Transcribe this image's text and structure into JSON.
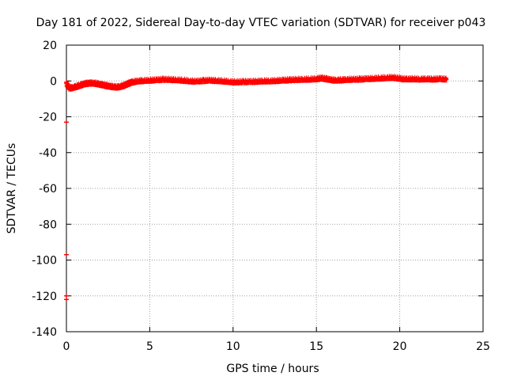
{
  "chart_data": {
    "type": "scatter",
    "title": "Day 181 of 2022, Sidereal Day-to-day VTEC variation (SDTVAR) for receiver p043",
    "xlabel": "GPS time / hours",
    "ylabel": "SDTVAR / TECUs",
    "xlim": [
      0,
      25
    ],
    "ylim": [
      -140,
      20
    ],
    "xticks": [
      0,
      5,
      10,
      15,
      20,
      25
    ],
    "yticks": [
      20,
      0,
      -20,
      -40,
      -60,
      -80,
      -100,
      -120,
      -140
    ],
    "grid": true,
    "series": [
      {
        "name": "SDTVAR",
        "color": "#ff0000",
        "marker": "plus",
        "points": [
          [
            0.2,
            -4.0
          ],
          [
            0.4,
            -3.6
          ],
          [
            0.6,
            -3.0
          ],
          [
            0.8,
            -2.4
          ],
          [
            1.0,
            -1.8
          ],
          [
            1.2,
            -1.4
          ],
          [
            1.4,
            -1.2
          ],
          [
            1.6,
            -1.2
          ],
          [
            1.8,
            -1.4
          ],
          [
            2.0,
            -1.8
          ],
          [
            2.2,
            -2.2
          ],
          [
            2.4,
            -2.6
          ],
          [
            2.6,
            -3.0
          ],
          [
            2.8,
            -3.2
          ],
          [
            3.0,
            -3.4
          ],
          [
            3.2,
            -3.2
          ],
          [
            3.4,
            -2.6
          ],
          [
            3.6,
            -1.8
          ],
          [
            3.8,
            -1.0
          ],
          [
            4.0,
            -0.5
          ],
          [
            4.3,
            0.0
          ],
          [
            4.6,
            0.2
          ],
          [
            5.0,
            0.4
          ],
          [
            5.4,
            0.6
          ],
          [
            5.8,
            0.9
          ],
          [
            6.2,
            0.8
          ],
          [
            6.6,
            0.6
          ],
          [
            7.0,
            0.4
          ],
          [
            7.4,
            0.0
          ],
          [
            7.8,
            -0.2
          ],
          [
            8.2,
            0.2
          ],
          [
            8.6,
            0.4
          ],
          [
            9.0,
            0.2
          ],
          [
            9.4,
            0.0
          ],
          [
            9.8,
            -0.4
          ],
          [
            10.2,
            -0.6
          ],
          [
            10.6,
            -0.4
          ],
          [
            11.0,
            -0.4
          ],
          [
            11.4,
            -0.2
          ],
          [
            11.8,
            0.0
          ],
          [
            12.2,
            0.0
          ],
          [
            12.6,
            0.2
          ],
          [
            13.0,
            0.4
          ],
          [
            13.4,
            0.6
          ],
          [
            13.8,
            0.8
          ],
          [
            14.2,
            0.9
          ],
          [
            14.6,
            1.0
          ],
          [
            15.0,
            1.2
          ],
          [
            15.3,
            1.6
          ],
          [
            15.6,
            1.2
          ],
          [
            15.9,
            0.6
          ],
          [
            16.2,
            0.4
          ],
          [
            16.5,
            0.6
          ],
          [
            16.8,
            0.8
          ],
          [
            17.2,
            0.9
          ],
          [
            17.6,
            1.0
          ],
          [
            18.0,
            1.2
          ],
          [
            18.4,
            1.4
          ],
          [
            18.8,
            1.6
          ],
          [
            19.2,
            1.8
          ],
          [
            19.6,
            2.0
          ],
          [
            20.0,
            1.4
          ],
          [
            20.4,
            1.0
          ],
          [
            20.8,
            1.2
          ],
          [
            21.2,
            1.0
          ],
          [
            21.6,
            1.2
          ],
          [
            22.0,
            1.0
          ],
          [
            22.4,
            1.2
          ],
          [
            22.8,
            1.0
          ],
          [
            0.0,
            -1.0
          ],
          [
            0.0,
            -23.0
          ],
          [
            0.0,
            -97.0
          ],
          [
            0.0,
            -120.0
          ],
          [
            0.0,
            -122.0
          ]
        ]
      }
    ]
  }
}
